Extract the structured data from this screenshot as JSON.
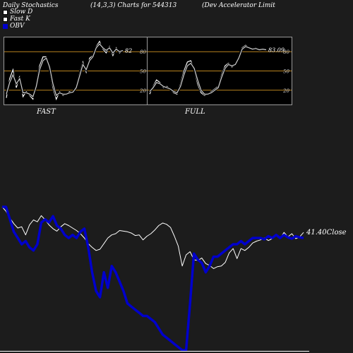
{
  "header": {
    "left": "Daily Stochastics",
    "middle": "(14,3,3) Charts for 544313",
    "right": "(Dev   Accelerator Limit"
  },
  "legend": {
    "items": [
      {
        "label": "Slow  D",
        "color": "#ffffff"
      },
      {
        "label": "Fast K",
        "color": "#ffffff"
      },
      {
        "label": "OBV",
        "color": "#0000cc"
      }
    ]
  },
  "chart_data": [
    {
      "type": "line",
      "title": "FAST",
      "levels": [
        20,
        50,
        80
      ],
      "level_color": "#b8821e",
      "ylim": [
        0,
        100
      ],
      "last_value_label": "82",
      "series": [
        {
          "values": [
            8,
            38,
            52,
            24,
            42,
            10,
            18,
            12,
            6,
            30,
            58,
            72,
            72,
            52,
            24,
            6,
            18,
            12,
            14,
            18,
            16,
            26,
            46,
            64,
            48,
            70,
            74,
            88,
            96,
            84,
            78,
            88,
            74,
            86,
            78,
            82
          ],
          "color": "#ffffff"
        },
        {
          "values": [
            14,
            32,
            44,
            30,
            38,
            16,
            16,
            14,
            10,
            26,
            52,
            66,
            70,
            56,
            30,
            12,
            16,
            14,
            14,
            16,
            17,
            24,
            42,
            60,
            52,
            66,
            72,
            86,
            92,
            86,
            82,
            86,
            78,
            84,
            80,
            82
          ],
          "color": "#cfcfcf"
        }
      ]
    },
    {
      "type": "line",
      "title": "FULL",
      "levels": [
        20,
        50,
        80
      ],
      "level_color": "#b8821e",
      "ylim": [
        0,
        100
      ],
      "last_value_label": "83.09",
      "series": [
        {
          "values": [
            14,
            26,
            36,
            32,
            24,
            26,
            22,
            16,
            14,
            30,
            50,
            64,
            66,
            52,
            30,
            16,
            12,
            14,
            18,
            22,
            26,
            44,
            58,
            62,
            56,
            60,
            72,
            86,
            90,
            86,
            84,
            86,
            82,
            84,
            83
          ],
          "color": "#ffffff"
        },
        {
          "values": [
            18,
            24,
            32,
            30,
            26,
            24,
            22,
            18,
            16,
            26,
            44,
            58,
            62,
            54,
            36,
            20,
            14,
            14,
            16,
            20,
            24,
            40,
            54,
            60,
            58,
            60,
            70,
            84,
            88,
            86,
            84,
            85,
            83,
            84,
            83
          ],
          "color": "#cfcfcf"
        }
      ]
    },
    {
      "type": "line",
      "close_label": "41.40Close",
      "series": [
        {
          "name": "",
          "color": "#ffffff",
          "values": [
            45.5,
            44.8,
            43.7,
            42.8,
            42.1,
            42.3,
            41.0,
            42.6,
            43.4,
            43.1,
            44.1,
            43.4,
            42.6,
            42.0,
            41.6,
            42.3,
            42.8,
            42.5,
            42.1,
            41.7,
            41.2,
            40.5,
            39.6,
            39.0,
            38.5,
            38.7,
            39.6,
            40.5,
            41.0,
            41.2,
            41.7,
            41.6,
            41.5,
            41.3,
            40.9,
            41.0,
            40.2,
            40.8,
            41.2,
            41.8,
            42.5,
            42.9,
            42.7,
            42.2,
            40.8,
            39.2,
            36.0,
            37.8,
            38.3,
            37.0,
            36.9,
            37.3,
            36.4,
            36.1,
            35.6,
            35.9,
            36.0,
            36.6,
            38.1,
            38.8,
            37.2,
            38.8,
            38.5,
            39.0,
            39.7,
            40.0,
            40.2,
            40.5,
            40.1,
            40.4,
            40.9,
            40.4,
            41.4,
            40.7,
            41.2,
            40.4,
            40.7,
            41.4
          ],
          "width": 1
        },
        {
          "name": "OBV",
          "color": "#0000cc",
          "values": [
            45.5,
            45.5,
            43.5,
            41.5,
            40.5,
            39.5,
            40.0,
            39.0,
            38.5,
            39.5,
            43.0,
            43.5,
            43.0,
            44.0,
            42.5,
            42.0,
            41.0,
            40.5,
            41.0,
            40.5,
            41.5,
            42.0,
            39.0,
            35.0,
            32.0,
            31.0,
            35.0,
            32.5,
            36.0,
            35.0,
            33.5,
            32.0,
            30.0,
            29.5,
            29.0,
            28.5,
            28.0,
            28.0,
            27.5,
            27.0,
            26.0,
            25.0,
            24.5,
            24.0,
            23.5,
            23.0,
            22.5,
            22.5,
            30.0,
            38.0,
            37.0,
            36.5,
            35.0,
            36.0,
            37.5,
            37.5,
            38.0,
            38.5,
            39.0,
            39.5,
            39.5,
            40.0,
            39.5,
            40.0,
            40.5,
            40.5,
            40.5,
            40.3,
            40.8,
            40.5,
            41.0,
            40.5,
            41.0,
            40.6,
            40.4,
            40.8,
            40.6,
            40.5
          ],
          "width": 3.5
        }
      ]
    }
  ],
  "panels": [
    {
      "title": "FAST"
    },
    {
      "title": "FULL"
    }
  ]
}
